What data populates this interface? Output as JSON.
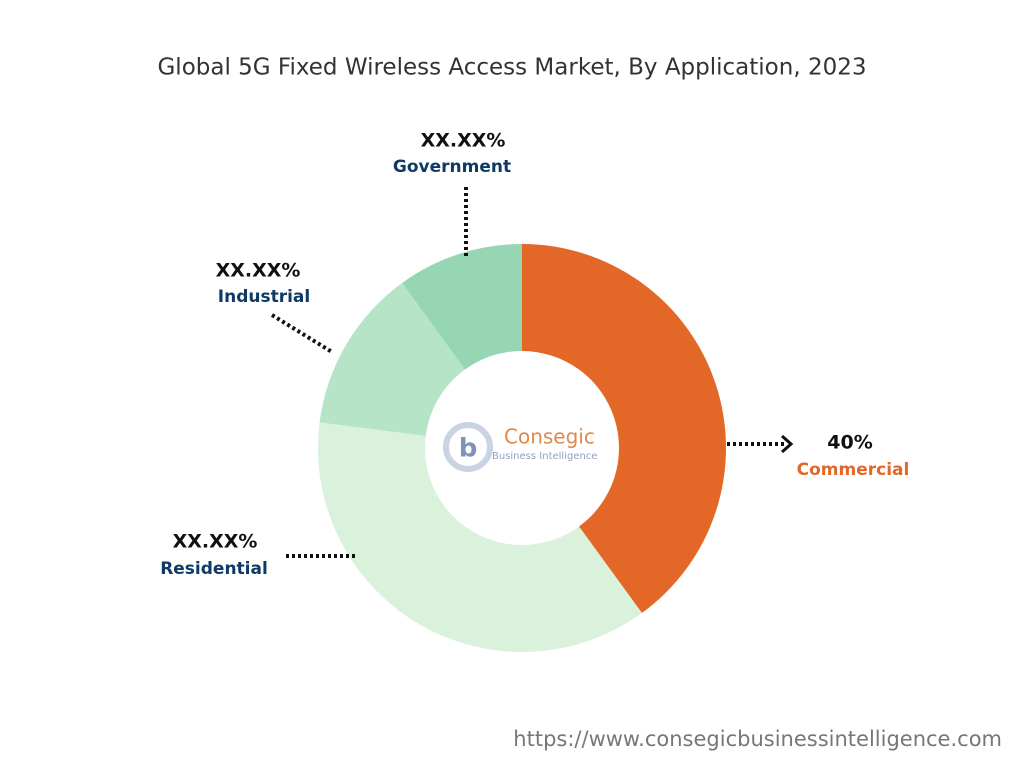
{
  "chart_data": {
    "type": "donut",
    "title": "Global 5G Fixed Wireless Access Market, By Application, 2023",
    "categories": [
      "Commercial",
      "Residential",
      "Industrial",
      "Government"
    ],
    "values": [
      40,
      37,
      13,
      10
    ],
    "value_labels": [
      "40%",
      "XX.XX%",
      "XX.XX%",
      "XX.XX%"
    ],
    "colors": [
      "#e36726",
      "#daf2dc",
      "#b5e4c7",
      "#96d6b3"
    ],
    "label_colors": [
      "#e36726",
      "#0f3a66",
      "#0f3a66",
      "#0f3a66"
    ]
  },
  "logo": {
    "name": "Consegic",
    "tagline": "Business Intelligence"
  },
  "footer": {
    "url": "https://www.consegicbusinessintelligence.com"
  }
}
